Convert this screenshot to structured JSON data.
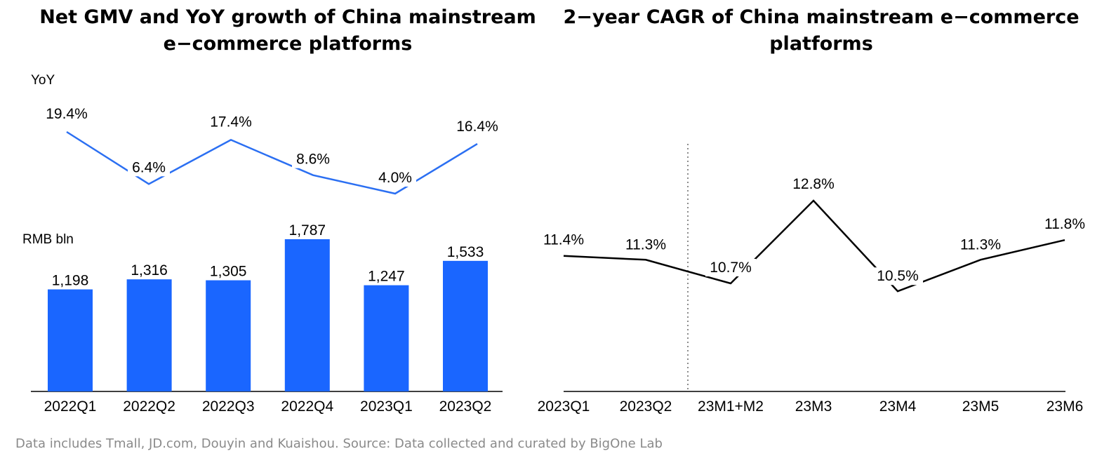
{
  "chart_data": [
    {
      "type": "bar",
      "title": "Net GMV and YoY growth of China mainstream e-commerce platforms",
      "title_lines": [
        "Net GMV and YoY growth of China mainstream",
        "e−commerce platforms"
      ],
      "categories": [
        "2022Q1",
        "2022Q2",
        "2022Q3",
        "2022Q4",
        "2023Q1",
        "2023Q2"
      ],
      "series": [
        {
          "type": "bar",
          "values": [
            1198,
            1316,
            1305,
            1787,
            1247,
            1533
          ],
          "labels": [
            "1,198",
            "1,316",
            "1,305",
            "1,787",
            "1,247",
            "1,533"
          ],
          "color": "#1a66ff",
          "unit_label": "RMB bln"
        },
        {
          "type": "line",
          "values": [
            19.4,
            6.4,
            17.4,
            8.6,
            4.0,
            16.4
          ],
          "labels": [
            "19.4%",
            "6.4%",
            "17.4%",
            "8.6%",
            "4.0%",
            "16.4%"
          ],
          "color": "#2b6ff2",
          "unit_label": "YoY"
        }
      ],
      "bar_ylim": [
        0,
        1900
      ],
      "line_ylim": [
        0,
        20
      ],
      "grid": false,
      "legend": "none"
    },
    {
      "type": "line",
      "title": "2-year CAGR of China mainstream e-commerce platforms",
      "title_lines": [
        "2−year CAGR of China mainstream e−commerce",
        "platforms"
      ],
      "categories": [
        "2023Q1",
        "2023Q2",
        "23M1+M2",
        "23M3",
        "23M4",
        "23M5",
        "23M6"
      ],
      "series": [
        {
          "values": [
            11.4,
            11.3,
            10.7,
            12.8,
            10.5,
            11.3,
            11.8
          ],
          "labels": [
            "11.4%",
            "11.3%",
            "10.7%",
            "12.8%",
            "10.5%",
            "11.3%",
            "11.8%"
          ],
          "color": "#000000"
        }
      ],
      "divider_after_category": "2023Q2",
      "grid": false,
      "legend": "none"
    }
  ],
  "footnote": "Data includes Tmall, JD.com, Douyin and Kuaishou. Source: Data collected and curated by BigOne Lab"
}
